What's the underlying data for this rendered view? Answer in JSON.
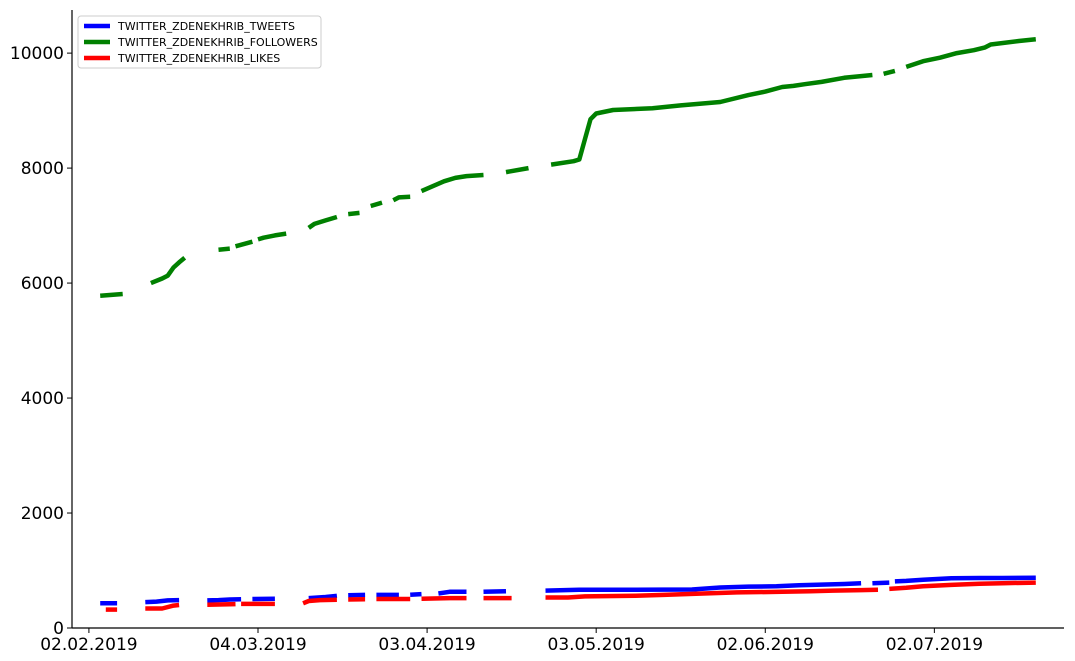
{
  "chart_data": {
    "type": "line",
    "title": "",
    "xlabel": "",
    "ylabel": "",
    "ylim": [
      0,
      10750
    ],
    "yticks": [
      0,
      2000,
      4000,
      6000,
      8000,
      10000
    ],
    "ytick_labels": [
      "0",
      "2000",
      "4000",
      "6000",
      "8000",
      "10000"
    ],
    "xlim": [
      "2019-01-30",
      "2019-07-25"
    ],
    "xticks": [
      "2019-02-02",
      "2019-03-04",
      "2019-04-03",
      "2019-05-03",
      "2019-06-02",
      "2019-07-02"
    ],
    "xtick_labels": [
      "02.02.2019",
      "04.03.2019",
      "03.04.2019",
      "03.05.2019",
      "02.06.2019",
      "02.07.2019"
    ],
    "grid": false,
    "legend_position": "top-left",
    "series": [
      {
        "name": "TWITTER_ZDENEKHRIB_TWEETS",
        "color": "#0000ff",
        "segments": [
          [
            [
              "2019-02-04",
              430
            ],
            [
              "2019-02-07",
              430
            ]
          ],
          [
            [
              "2019-02-12",
              450
            ],
            [
              "2019-02-14",
              460
            ],
            [
              "2019-02-16",
              480
            ],
            [
              "2019-02-18",
              485
            ]
          ],
          [
            [
              "2019-02-23",
              480
            ],
            [
              "2019-02-25",
              485
            ],
            [
              "2019-02-27",
              495
            ],
            [
              "2019-03-01",
              500
            ]
          ],
          [
            [
              "2019-03-03",
              505
            ],
            [
              "2019-03-07",
              510
            ]
          ],
          [
            [
              "2019-03-13",
              520
            ],
            [
              "2019-03-16",
              540
            ],
            [
              "2019-03-18",
              560
            ]
          ],
          [
            [
              "2019-03-20",
              570
            ],
            [
              "2019-03-23",
              575
            ]
          ],
          [
            [
              "2019-03-25",
              575
            ],
            [
              "2019-03-29",
              575
            ]
          ],
          [
            [
              "2019-03-31",
              580
            ],
            [
              "2019-04-02",
              590
            ]
          ],
          [
            [
              "2019-04-05",
              600
            ],
            [
              "2019-04-07",
              630
            ],
            [
              "2019-04-10",
              630
            ]
          ],
          [
            [
              "2019-04-13",
              630
            ],
            [
              "2019-04-17",
              640
            ]
          ],
          [
            [
              "2019-04-24",
              650
            ],
            [
              "2019-04-30",
              665
            ],
            [
              "2019-05-10",
              665
            ],
            [
              "2019-05-20",
              670
            ],
            [
              "2019-05-25",
              705
            ],
            [
              "2019-05-30",
              720
            ],
            [
              "2019-06-04",
              725
            ],
            [
              "2019-06-08",
              745
            ],
            [
              "2019-06-12",
              755
            ],
            [
              "2019-06-16",
              765
            ],
            [
              "2019-06-19",
              780
            ]
          ],
          [
            [
              "2019-06-21",
              780
            ],
            [
              "2019-06-24",
              790
            ]
          ],
          [
            [
              "2019-06-25",
              810
            ],
            [
              "2019-06-27",
              820
            ],
            [
              "2019-06-30",
              840
            ],
            [
              "2019-07-05",
              865
            ],
            [
              "2019-07-10",
              870
            ],
            [
              "2019-07-14",
              870
            ],
            [
              "2019-07-20",
              875
            ]
          ]
        ]
      },
      {
        "name": "TWITTER_ZDENEKHRIB_FOLLOWERS",
        "color": "#008000",
        "segments": [
          [
            [
              "2019-02-04",
              5780
            ],
            [
              "2019-02-08",
              5810
            ]
          ],
          [
            [
              "2019-02-13",
              6000
            ],
            [
              "2019-02-15",
              6080
            ],
            [
              "2019-02-16",
              6130
            ],
            [
              "2019-02-17",
              6270
            ],
            [
              "2019-02-18",
              6360
            ],
            [
              "2019-02-19",
              6440
            ]
          ],
          [
            [
              "2019-02-25",
              6580
            ],
            [
              "2019-02-27",
              6600
            ]
          ],
          [
            [
              "2019-02-28",
              6640
            ],
            [
              "2019-03-03",
              6720
            ]
          ],
          [
            [
              "2019-03-04",
              6760
            ],
            [
              "2019-03-05",
              6790
            ],
            [
              "2019-03-07",
              6830
            ],
            [
              "2019-03-09",
              6860
            ]
          ],
          [
            [
              "2019-03-13",
              6960
            ],
            [
              "2019-03-14",
              7030
            ],
            [
              "2019-03-16",
              7090
            ],
            [
              "2019-03-18",
              7150
            ]
          ],
          [
            [
              "2019-03-20",
              7200
            ],
            [
              "2019-03-22",
              7220
            ]
          ],
          [
            [
              "2019-03-24",
              7340
            ],
            [
              "2019-03-26",
              7400
            ]
          ],
          [
            [
              "2019-03-28",
              7440
            ],
            [
              "2019-03-29",
              7490
            ],
            [
              "2019-03-31",
              7500
            ]
          ],
          [
            [
              "2019-04-02",
              7600
            ],
            [
              "2019-04-06",
              7770
            ],
            [
              "2019-04-08",
              7830
            ],
            [
              "2019-04-10",
              7860
            ],
            [
              "2019-04-13",
              7880
            ]
          ],
          [
            [
              "2019-04-17",
              7930
            ],
            [
              "2019-04-21",
              8000
            ]
          ],
          [
            [
              "2019-04-25",
              8060
            ],
            [
              "2019-04-29",
              8120
            ],
            [
              "2019-04-30",
              8150
            ],
            [
              "2019-05-01",
              8500
            ],
            [
              "2019-05-02",
              8850
            ],
            [
              "2019-05-03",
              8950
            ],
            [
              "2019-05-06",
              9010
            ],
            [
              "2019-05-13",
              9040
            ],
            [
              "2019-05-18",
              9090
            ],
            [
              "2019-05-25",
              9150
            ],
            [
              "2019-05-30",
              9270
            ],
            [
              "2019-06-02",
              9330
            ],
            [
              "2019-06-05",
              9410
            ],
            [
              "2019-06-07",
              9430
            ],
            [
              "2019-06-09",
              9460
            ],
            [
              "2019-06-12",
              9500
            ],
            [
              "2019-06-16",
              9570
            ],
            [
              "2019-06-19",
              9600
            ],
            [
              "2019-06-21",
              9620
            ]
          ],
          [
            [
              "2019-06-23",
              9640
            ],
            [
              "2019-06-25",
              9690
            ]
          ],
          [
            [
              "2019-06-27",
              9760
            ],
            [
              "2019-06-30",
              9860
            ],
            [
              "2019-07-03",
              9920
            ],
            [
              "2019-07-06",
              10000
            ],
            [
              "2019-07-09",
              10050
            ],
            [
              "2019-07-11",
              10100
            ],
            [
              "2019-07-12",
              10150
            ],
            [
              "2019-07-17",
              10210
            ],
            [
              "2019-07-20",
              10240
            ]
          ]
        ]
      },
      {
        "name": "TWITTER_ZDENEKHRIB_LIKES",
        "color": "#ff0000",
        "segments": [
          [
            [
              "2019-02-05",
              320
            ],
            [
              "2019-02-07",
              320
            ]
          ],
          [
            [
              "2019-02-12",
              340
            ],
            [
              "2019-02-15",
              340
            ],
            [
              "2019-02-17",
              390
            ],
            [
              "2019-02-18",
              400
            ]
          ],
          [
            [
              "2019-02-23",
              405
            ],
            [
              "2019-02-26",
              410
            ],
            [
              "2019-02-28",
              415
            ]
          ],
          [
            [
              "2019-03-01",
              420
            ],
            [
              "2019-03-07",
              420
            ]
          ],
          [
            [
              "2019-03-12",
              430
            ],
            [
              "2019-03-13",
              470
            ],
            [
              "2019-03-15",
              485
            ],
            [
              "2019-03-18",
              490
            ]
          ],
          [
            [
              "2019-03-20",
              495
            ],
            [
              "2019-03-23",
              500
            ]
          ],
          [
            [
              "2019-03-25",
              505
            ],
            [
              "2019-03-31",
              505
            ]
          ],
          [
            [
              "2019-04-02",
              510
            ],
            [
              "2019-04-07",
              520
            ],
            [
              "2019-04-10",
              520
            ]
          ],
          [
            [
              "2019-04-13",
              520
            ],
            [
              "2019-04-18",
              520
            ]
          ],
          [
            [
              "2019-04-24",
              530
            ],
            [
              "2019-04-28",
              530
            ],
            [
              "2019-05-01",
              550
            ],
            [
              "2019-05-10",
              560
            ],
            [
              "2019-05-15",
              575
            ],
            [
              "2019-05-22",
              600
            ],
            [
              "2019-05-28",
              620
            ],
            [
              "2019-06-05",
              630
            ],
            [
              "2019-06-10",
              640
            ],
            [
              "2019-06-14",
              650
            ],
            [
              "2019-06-19",
              660
            ],
            [
              "2019-06-22",
              665
            ]
          ],
          [
            [
              "2019-06-24",
              680
            ],
            [
              "2019-06-27",
              700
            ],
            [
              "2019-06-30",
              725
            ],
            [
              "2019-07-05",
              750
            ],
            [
              "2019-07-10",
              770
            ],
            [
              "2019-07-14",
              780
            ],
            [
              "2019-07-20",
              790
            ]
          ]
        ]
      }
    ]
  }
}
